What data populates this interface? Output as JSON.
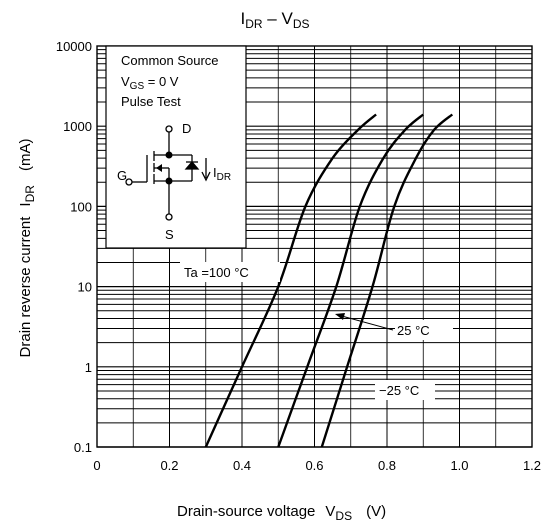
{
  "chart_data": {
    "type": "line",
    "title": {
      "main": "I",
      "sub": "DR",
      "dash": " – V",
      "sub2": "DS"
    },
    "xlabel": {
      "main": "Drain-source voltage",
      "var": "V",
      "sub": "DS",
      "unit": "(V)"
    },
    "ylabel": {
      "main": "Drain reverse current",
      "var": "I",
      "sub": "DR",
      "unit": "(mA)"
    },
    "xlim": [
      0,
      1.2
    ],
    "ylim": [
      0.1,
      10000
    ],
    "yscale": "log",
    "grid": true,
    "xticks": [
      "0",
      "0.2",
      "0.4",
      "0.6",
      "0.8",
      "1.0",
      "1.2"
    ],
    "yticks": [
      "10000",
      "1000",
      "100",
      "10",
      "1",
      "0.1"
    ],
    "series": [
      {
        "name": "Ta =100 °C",
        "points": [
          [
            0.3,
            0.1
          ],
          [
            0.4,
            1
          ],
          [
            0.5,
            10
          ],
          [
            0.575,
            100
          ],
          [
            0.65,
            400
          ],
          [
            0.72,
            900
          ],
          [
            0.77,
            1400
          ]
        ]
      },
      {
        "name": "25 °C",
        "points": [
          [
            0.5,
            0.1
          ],
          [
            0.58,
            1
          ],
          [
            0.66,
            10
          ],
          [
            0.725,
            100
          ],
          [
            0.79,
            400
          ],
          [
            0.85,
            900
          ],
          [
            0.9,
            1400
          ]
        ]
      },
      {
        "name": "−25 °C",
        "points": [
          [
            0.62,
            0.1
          ],
          [
            0.69,
            1
          ],
          [
            0.76,
            10
          ],
          [
            0.82,
            100
          ],
          [
            0.88,
            400
          ],
          [
            0.93,
            900
          ],
          [
            0.98,
            1400
          ]
        ]
      }
    ],
    "legend_box": {
      "lines": [
        "Common Source",
        "V|GS| = 0 V",
        "Pulse Test"
      ],
      "symbol": {
        "d": "D",
        "g": "G",
        "s": "S",
        "idr": "I",
        "idr_sub": "DR"
      }
    }
  }
}
